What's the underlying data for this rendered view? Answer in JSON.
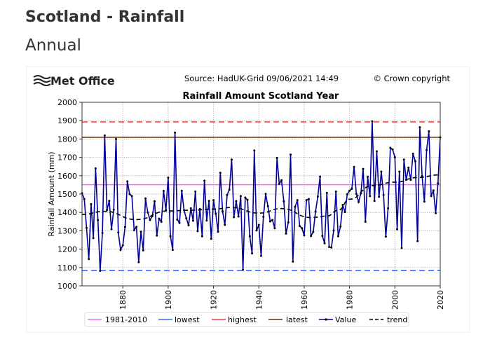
{
  "page": {
    "title": "Scotland - Rainfall",
    "subtitle": "Annual"
  },
  "header": {
    "logo": "Met Office",
    "source": "Source: HadUK-Grid 09/06/2021 14:49",
    "copyright": "© Crown copyright"
  },
  "chart_data": {
    "type": "line",
    "title": "Rainfall Amount Scotland Year",
    "xlabel": "",
    "ylabel": "Rainfall Amount (mm)",
    "xlim": [
      1862,
      2020
    ],
    "ylim": [
      1000,
      2000
    ],
    "xticks": [
      "1880",
      "1900",
      "1920",
      "1940",
      "1960",
      "1980",
      "2000",
      "2020"
    ],
    "yticks": [
      "1000",
      "1100",
      "1200",
      "1300",
      "1400",
      "1500",
      "1600",
      "1700",
      "1800",
      "1900",
      "2000"
    ],
    "grid": true,
    "legend_position": "bottom",
    "reference_lines": [
      {
        "name": "1981-2010",
        "value": 1551,
        "color": "#ff66ff",
        "style": "solid"
      },
      {
        "name": "lowest",
        "value": 1083,
        "color": "#3366ff",
        "style": "dashed"
      },
      {
        "name": "highest",
        "value": 1893,
        "color": "#ff3333",
        "style": "dashed"
      },
      {
        "name": "latest",
        "value": 1809,
        "color": "#663300",
        "style": "solid"
      }
    ],
    "series": [
      {
        "name": "Value",
        "color": "#000099",
        "start_year": 1862,
        "values": [
          1505,
          1473,
          1316,
          1146,
          1445,
          1260,
          1640,
          1358,
          1082,
          1288,
          1819,
          1412,
          1463,
          1309,
          1415,
          1800,
          1291,
          1196,
          1221,
          1321,
          1569,
          1500,
          1489,
          1304,
          1321,
          1129,
          1295,
          1193,
          1476,
          1400,
          1359,
          1380,
          1461,
          1274,
          1366,
          1349,
          1517,
          1412,
          1589,
          1270,
          1196,
          1835,
          1361,
          1343,
          1518,
          1412,
          1368,
          1330,
          1422,
          1355,
          1514,
          1298,
          1419,
          1270,
          1573,
          1356,
          1463,
          1256,
          1467,
          1393,
          1295,
          1616,
          1406,
          1332,
          1495,
          1524,
          1688,
          1374,
          1462,
          1378,
          1489,
          1088,
          1481,
          1468,
          1270,
          1177,
          1737,
          1302,
          1332,
          1163,
          1376,
          1501,
          1434,
          1351,
          1359,
          1314,
          1697,
          1556,
          1575,
          1461,
          1285,
          1346,
          1715,
          1132,
          1431,
          1467,
          1326,
          1314,
          1275,
          1467,
          1473,
          1272,
          1294,
          1405,
          1486,
          1595,
          1272,
          1232,
          1506,
          1212,
          1209,
          1302,
          1514,
          1270,
          1323,
          1441,
          1402,
          1499,
          1518,
          1529,
          1648,
          1501,
          1457,
          1504,
          1637,
          1349,
          1594,
          1489,
          1896,
          1463,
          1733,
          1485,
          1622,
          1495,
          1268,
          1422,
          1752,
          1743,
          1701,
          1308,
          1622,
          1206,
          1688,
          1578,
          1644,
          1578,
          1720,
          1679,
          1244,
          1864,
          1597,
          1459,
          1740,
          1842,
          1489,
          1520,
          1396,
          1558,
          1809
        ]
      },
      {
        "name": "trend",
        "color": "#000000",
        "style": "dashed",
        "x": [
          1862,
          1872,
          1886,
          1900,
          1910,
          1920,
          1928,
          1940,
          1950,
          1963,
          1970,
          1975,
          1980,
          1990,
          2000,
          2010,
          2020
        ],
        "values": [
          1389,
          1406,
          1361,
          1408,
          1412,
          1418,
          1427,
          1396,
          1421,
          1372,
          1380,
          1412,
          1472,
          1546,
          1565,
          1590,
          1605
        ]
      }
    ],
    "legend": [
      "1981-2010",
      "lowest",
      "highest",
      "latest",
      "Value",
      "trend"
    ]
  }
}
